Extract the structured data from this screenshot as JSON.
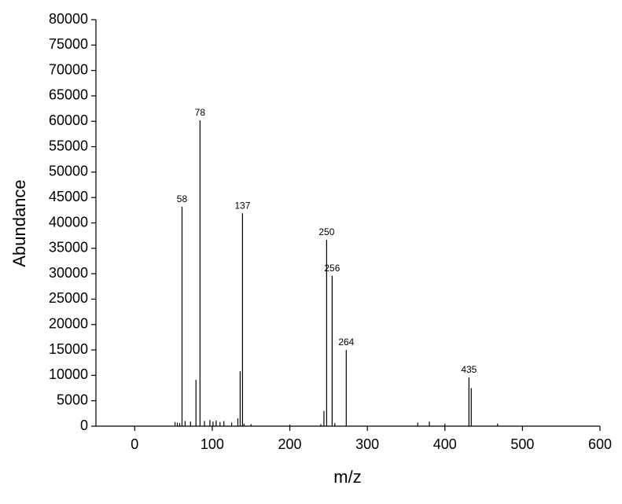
{
  "chart_data": {
    "type": "stick",
    "x_label": "m/z",
    "y_label": "Abundance",
    "xlim": [
      -50,
      600
    ],
    "xticks": [
      0,
      100,
      200,
      300,
      400,
      500,
      600
    ],
    "ylim": [
      0,
      80000
    ],
    "yticks": [
      0,
      5000,
      10000,
      15000,
      20000,
      25000,
      30000,
      35000,
      40000,
      45000,
      50000,
      55000,
      60000,
      65000,
      70000,
      75000,
      80000
    ],
    "color": "#000000",
    "x": [
      52,
      55,
      58,
      61,
      65,
      72,
      79,
      84.2,
      90,
      97,
      101,
      105,
      110,
      115,
      125,
      133,
      136,
      139,
      141,
      150,
      200,
      240,
      244,
      247.5,
      254.6,
      258,
      272.8,
      365,
      380,
      400,
      431,
      434,
      468
    ],
    "values": [
      800,
      700,
      600,
      43200,
      1000,
      900,
      9100,
      60200,
      1000,
      1200,
      900,
      1100,
      800,
      1000,
      700,
      1500,
      10800,
      41900,
      500,
      400,
      300,
      400,
      3000,
      36700,
      29600,
      600,
      15000,
      700,
      900,
      500,
      9600,
      7500,
      500
    ],
    "labels": [
      null,
      null,
      null,
      "58",
      null,
      null,
      null,
      "78",
      null,
      null,
      null,
      null,
      null,
      null,
      null,
      null,
      null,
      "137",
      null,
      null,
      null,
      null,
      null,
      "250",
      "256",
      null,
      "264",
      null,
      null,
      null,
      "435",
      null,
      null
    ]
  }
}
